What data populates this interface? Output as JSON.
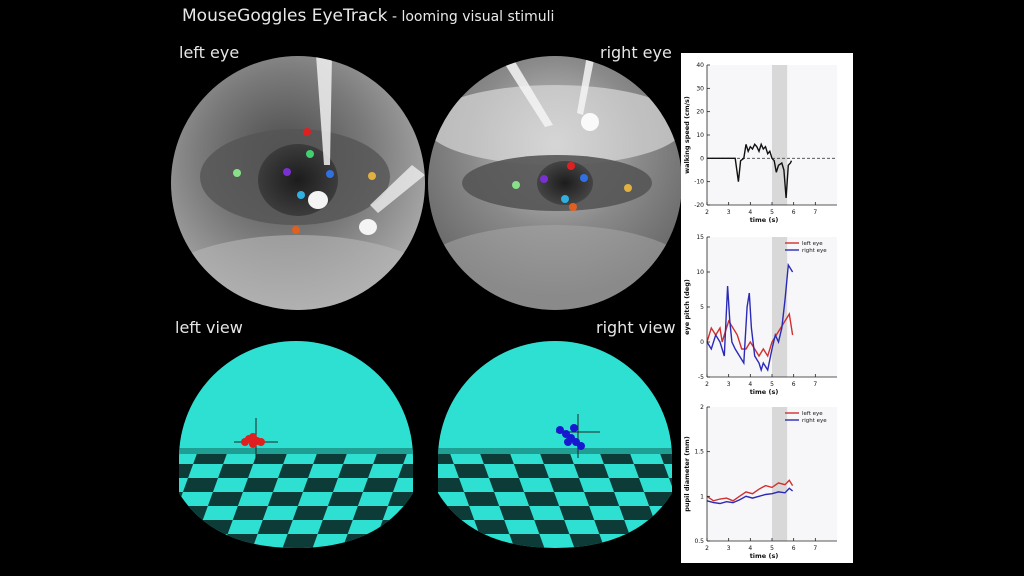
{
  "header": {
    "title": "MouseGoggles EyeTrack",
    "subtitle": " - looming visual stimuli"
  },
  "labels": {
    "left_eye": "left eye",
    "right_eye": "right eye",
    "left_view": "left view",
    "right_view": "right view"
  },
  "colors": {
    "background": "#000000",
    "scene_sky": "#2ee0d2",
    "checker_dark": "#0d3b38",
    "left_series": "#d03030",
    "right_series": "#2a2ab8",
    "stimulus_period": "#d8d8d8"
  },
  "markers": {
    "left_eye": [
      "red",
      "green",
      "purple",
      "teal",
      "blue",
      "orange",
      "cyan",
      "orange-red"
    ],
    "right_eye": [
      "green",
      "purple",
      "red",
      "blue",
      "orange",
      "cyan",
      "orange-red"
    ]
  },
  "chart_data": [
    {
      "type": "line",
      "xlabel": "time (s)",
      "ylabel": "walking speed (cm/s)",
      "xlim": [
        2,
        8
      ],
      "ylim": [
        -20,
        40
      ],
      "xticks": [
        "2",
        "3",
        "4",
        "5",
        "6",
        "7"
      ],
      "yticks": [
        "40",
        "30",
        "20",
        "10",
        "0",
        "-10",
        "-20"
      ],
      "shaded_region": [
        5.0,
        5.7
      ],
      "reference_line": 0,
      "series": [
        {
          "color": "#111111",
          "x": [
            2.0,
            3.3,
            3.45,
            3.55,
            3.7,
            3.8,
            3.9,
            4.0,
            4.1,
            4.2,
            4.3,
            4.4,
            4.5,
            4.6,
            4.7,
            4.8,
            4.9,
            5.0,
            5.1,
            5.2,
            5.3,
            5.45,
            5.55,
            5.65,
            5.75,
            5.85,
            5.9
          ],
          "y": [
            0,
            0,
            -10,
            -1,
            0,
            6,
            3,
            5,
            4,
            6,
            5,
            3,
            6,
            4,
            5,
            2,
            3,
            0,
            -1,
            -6,
            -3,
            -2,
            -5,
            -17,
            -3,
            -2,
            -1
          ]
        }
      ]
    },
    {
      "type": "line",
      "xlabel": "time (s)",
      "ylabel": "eye pitch (deg)",
      "xlim": [
        2,
        8
      ],
      "ylim": [
        -5,
        15
      ],
      "xticks": [
        "2",
        "3",
        "4",
        "5",
        "6",
        "7"
      ],
      "yticks": [
        "15",
        "10",
        "5",
        "0",
        "-5"
      ],
      "shaded_region": [
        5.0,
        5.7
      ],
      "legend": [
        "left eye",
        "right eye"
      ],
      "series": [
        {
          "name": "left eye",
          "color": "#d03030",
          "x": [
            2.0,
            2.2,
            2.4,
            2.6,
            2.7,
            2.8,
            3.0,
            3.2,
            3.4,
            3.5,
            3.6,
            3.8,
            4.0,
            4.2,
            4.4,
            4.6,
            4.8,
            5.0,
            5.2,
            5.4,
            5.6,
            5.8,
            5.95
          ],
          "y": [
            0,
            2,
            1,
            2,
            0,
            1,
            3,
            2,
            1,
            0,
            -1,
            -1,
            0,
            -1,
            -2,
            -1,
            -2,
            0,
            1,
            2,
            3,
            4,
            1
          ]
        },
        {
          "name": "right eye",
          "color": "#2a2ab8",
          "x": [
            2.0,
            2.2,
            2.4,
            2.6,
            2.8,
            2.95,
            3.05,
            3.15,
            3.3,
            3.5,
            3.7,
            3.85,
            3.95,
            4.05,
            4.2,
            4.4,
            4.5,
            4.6,
            4.8,
            5.0,
            5.15,
            5.3,
            5.45,
            5.6,
            5.75,
            5.95
          ],
          "y": [
            0,
            -1,
            1,
            0,
            -2,
            8,
            3,
            0,
            -1,
            -2,
            -3,
            5,
            7,
            2,
            -2,
            -3,
            -4,
            -3,
            -4,
            -1,
            1,
            0,
            2,
            6,
            11,
            10
          ]
        }
      ]
    },
    {
      "type": "line",
      "xlabel": "time (s)",
      "ylabel": "pupil diameter (mm)",
      "xlim": [
        2,
        8
      ],
      "ylim": [
        0.5,
        2
      ],
      "xticks": [
        "2",
        "3",
        "4",
        "5",
        "6",
        "7"
      ],
      "yticks": [
        "2",
        "1.5",
        "1",
        "0.5"
      ],
      "shaded_region": [
        5.0,
        5.7
      ],
      "legend": [
        "left eye",
        "right eye"
      ],
      "series": [
        {
          "name": "left eye",
          "color": "#d03030",
          "x": [
            2.0,
            2.3,
            2.6,
            2.9,
            3.2,
            3.5,
            3.8,
            4.1,
            4.4,
            4.7,
            5.0,
            5.3,
            5.6,
            5.8,
            5.95
          ],
          "y": [
            1.0,
            0.95,
            0.97,
            0.98,
            0.95,
            1.0,
            1.05,
            1.03,
            1.08,
            1.12,
            1.1,
            1.15,
            1.13,
            1.18,
            1.12
          ]
        },
        {
          "name": "right eye",
          "color": "#2a2ab8",
          "x": [
            2.0,
            2.3,
            2.6,
            2.9,
            3.2,
            3.5,
            3.8,
            4.1,
            4.4,
            4.7,
            5.0,
            5.3,
            5.6,
            5.8,
            5.95
          ],
          "y": [
            0.95,
            0.93,
            0.92,
            0.94,
            0.93,
            0.96,
            1.0,
            0.98,
            1.0,
            1.02,
            1.03,
            1.05,
            1.04,
            1.09,
            1.06
          ]
        }
      ]
    }
  ]
}
